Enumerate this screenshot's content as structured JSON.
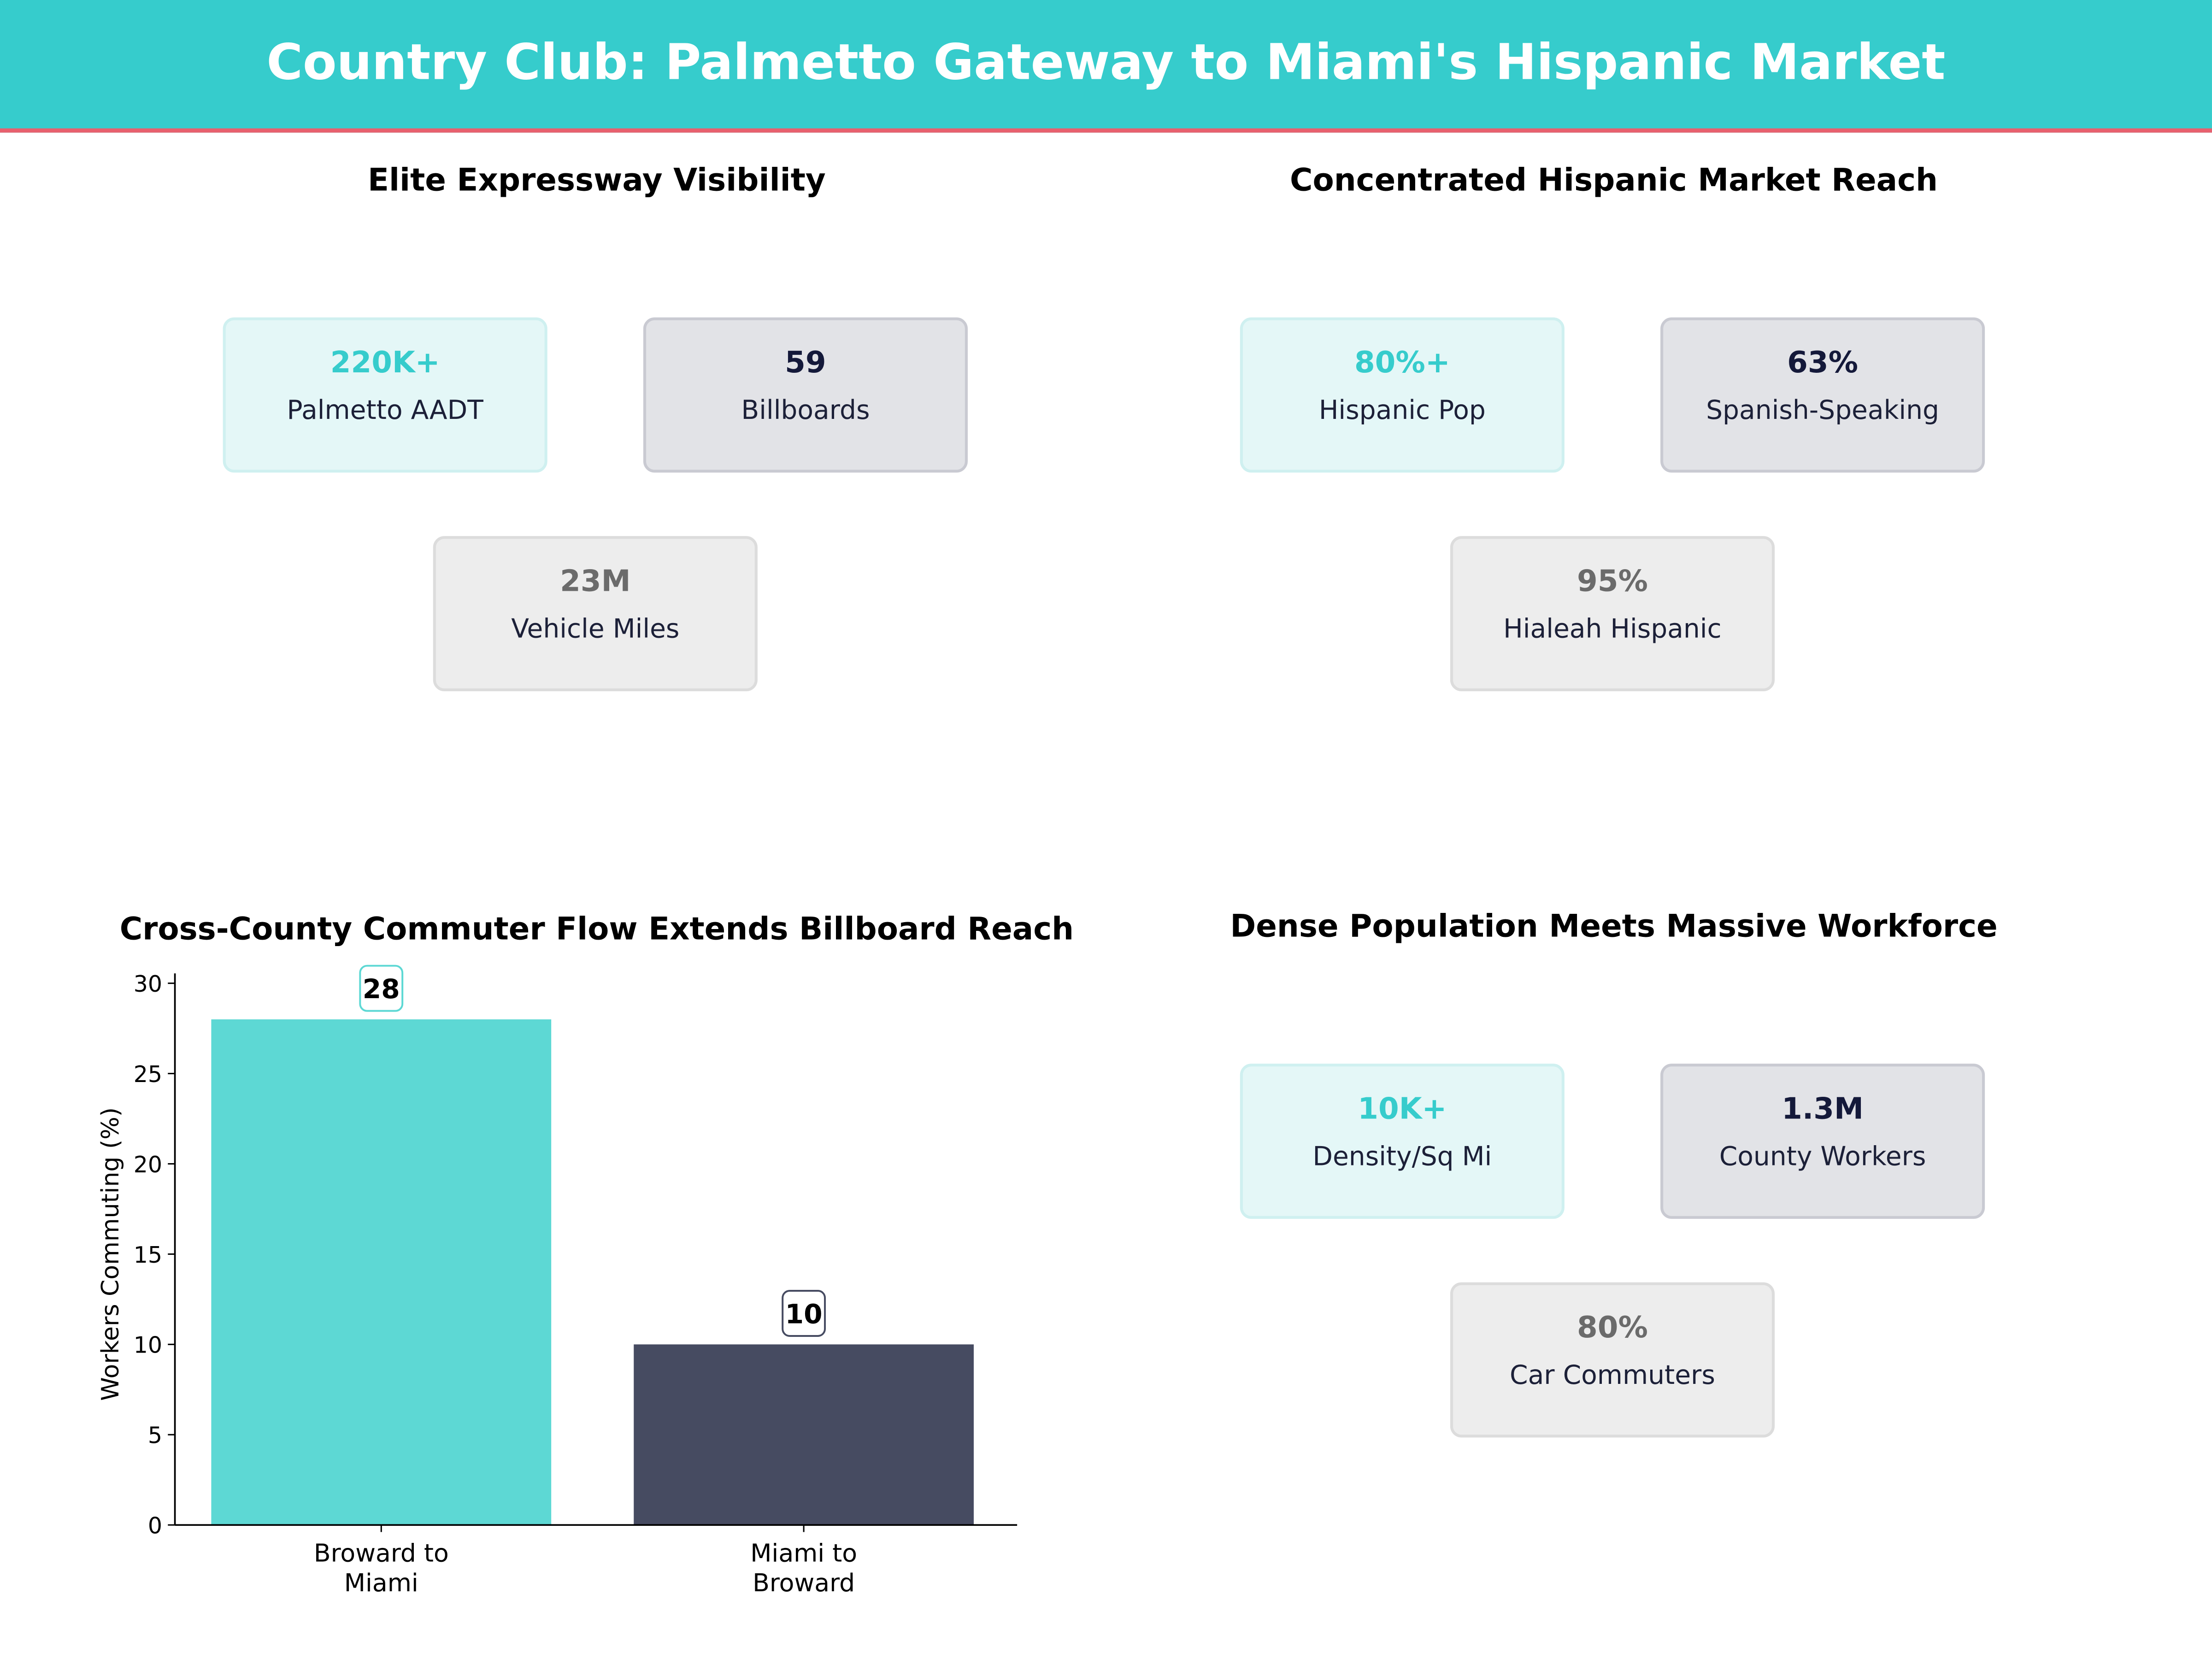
{
  "header": {
    "title": "Country Club: Palmetto Gateway to Miami's Hispanic Market"
  },
  "colors": {
    "accent": "#36CCCC",
    "accent_line": "#E8606E",
    "bar_teal": "#5DD8D4",
    "bar_dark": "#464B61"
  },
  "panels": [
    {
      "title": "Elite Expressway Visibility",
      "cards": [
        {
          "value": "220K+",
          "label": "Palmetto AADT"
        },
        {
          "value": "59",
          "label": "Billboards"
        },
        {
          "value": "23M",
          "label": "Vehicle Miles"
        }
      ]
    },
    {
      "title": "Concentrated Hispanic Market Reach",
      "cards": [
        {
          "value": "80%+",
          "label": "Hispanic Pop"
        },
        {
          "value": "63%",
          "label": "Spanish-Speaking"
        },
        {
          "value": "95%",
          "label": "Hialeah Hispanic"
        }
      ]
    },
    {
      "title": "Dense Population Meets Massive Workforce",
      "cards": [
        {
          "value": "10K+",
          "label": "Density/Sq Mi"
        },
        {
          "value": "1.3M",
          "label": "County Workers"
        },
        {
          "value": "80%",
          "label": "Car Commuters"
        }
      ]
    }
  ],
  "chart_data": {
    "type": "bar",
    "title": "Cross-County Commuter Flow Extends Billboard Reach",
    "categories": [
      "Broward to\nMiami",
      "Miami to\nBroward"
    ],
    "values": [
      28,
      10
    ],
    "data_labels": [
      "28",
      "10"
    ],
    "xlabel": "",
    "ylabel": "Workers Commuting (%)",
    "ylim": [
      0,
      30
    ],
    "yticks": [
      0,
      5,
      10,
      15,
      20,
      25,
      30
    ],
    "grid": false,
    "bar_colors": [
      "#5DD8D4",
      "#464B61"
    ]
  }
}
